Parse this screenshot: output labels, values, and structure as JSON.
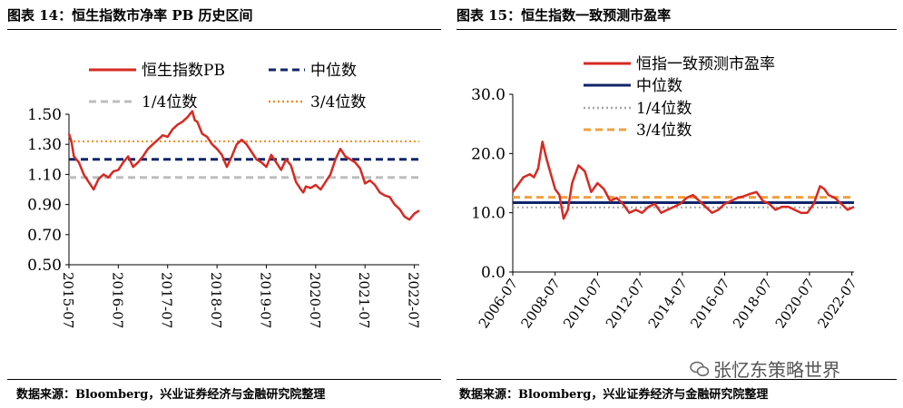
{
  "charts": [
    {
      "title": "图表 14：恒生指数市净率 PB 历史区间",
      "source": "数据来源：Bloomberg，兴业证券经济与金融研究院整理",
      "chart_data": {
        "type": "line",
        "x_tick_labels": [
          "2015-07",
          "2016-07",
          "2017-07",
          "2018-07",
          "2019-07",
          "2020-07",
          "2021-07",
          "2022-07"
        ],
        "ylim": [
          0.5,
          1.5
        ],
        "y_ticks": [
          0.5,
          0.7,
          0.9,
          1.1,
          1.3,
          1.5
        ],
        "y_tick_labels": [
          "0.50",
          "0.70",
          "0.90",
          "1.10",
          "1.30",
          "1.50"
        ],
        "grid": false,
        "legend_position": "top",
        "series": [
          {
            "name": "恒生指数PB",
            "style": "solid",
            "color": "#d62a22",
            "x": [
              2015.5,
              2015.55,
              2015.6,
              2015.7,
              2015.8,
              2015.9,
              2016.0,
              2016.1,
              2016.2,
              2016.3,
              2016.4,
              2016.5,
              2016.6,
              2016.7,
              2016.8,
              2016.9,
              2017.0,
              2017.1,
              2017.2,
              2017.3,
              2017.4,
              2017.5,
              2017.6,
              2017.7,
              2017.8,
              2017.9,
              2018.0,
              2018.05,
              2018.1,
              2018.2,
              2018.3,
              2018.4,
              2018.5,
              2018.6,
              2018.7,
              2018.8,
              2018.9,
              2019.0,
              2019.1,
              2019.2,
              2019.3,
              2019.4,
              2019.5,
              2019.6,
              2019.7,
              2019.8,
              2019.9,
              2020.0,
              2020.1,
              2020.2,
              2020.25,
              2020.3,
              2020.4,
              2020.5,
              2020.6,
              2020.7,
              2020.8,
              2020.9,
              2021.0,
              2021.1,
              2021.2,
              2021.3,
              2021.4,
              2021.5,
              2021.6,
              2021.7,
              2021.8,
              2021.9,
              2022.0,
              2022.1,
              2022.2,
              2022.3,
              2022.4,
              2022.5,
              2022.6
            ],
            "values": [
              1.37,
              1.32,
              1.22,
              1.18,
              1.1,
              1.05,
              1.0,
              1.07,
              1.1,
              1.08,
              1.12,
              1.13,
              1.18,
              1.22,
              1.15,
              1.18,
              1.22,
              1.27,
              1.3,
              1.33,
              1.36,
              1.35,
              1.4,
              1.43,
              1.45,
              1.48,
              1.52,
              1.46,
              1.45,
              1.37,
              1.35,
              1.3,
              1.27,
              1.23,
              1.15,
              1.22,
              1.3,
              1.33,
              1.3,
              1.25,
              1.2,
              1.18,
              1.15,
              1.23,
              1.18,
              1.13,
              1.2,
              1.16,
              1.05,
              1.0,
              0.98,
              1.02,
              1.01,
              1.03,
              1.0,
              1.05,
              1.1,
              1.2,
              1.27,
              1.22,
              1.2,
              1.18,
              1.14,
              1.04,
              1.06,
              1.03,
              0.98,
              0.96,
              0.95,
              0.9,
              0.87,
              0.82,
              0.8,
              0.84,
              0.86
            ]
          },
          {
            "name": "中位数",
            "style": "dashed",
            "color": "#10266b",
            "value": 1.2
          },
          {
            "name": "1/4位数",
            "style": "dashed",
            "color": "#bdbdbd",
            "value": 1.08
          },
          {
            "name": "3/4位数",
            "style": "dotted",
            "color": "#f28c1e",
            "value": 1.32
          }
        ]
      }
    },
    {
      "title": "图表 15：恒生指数一致预测市盈率",
      "source": "数据来源：Bloomberg，兴业证券经济与金融研究院整理",
      "chart_data": {
        "type": "line",
        "x_tick_labels": [
          "2006-07",
          "2008-07",
          "2010-07",
          "2012-07",
          "2014-07",
          "2016-07",
          "2018-07",
          "2020-07",
          "2022-07"
        ],
        "ylim": [
          0,
          30
        ],
        "y_ticks": [
          0,
          10,
          20,
          30
        ],
        "y_tick_labels": [
          "0.0",
          "10.0",
          "20.0",
          "30.0"
        ],
        "grid": false,
        "legend_position": "top",
        "series": [
          {
            "name": "恒指一致预测市盈率",
            "style": "solid",
            "color": "#d62a22",
            "x": [
              2006.5,
              2006.8,
              2007.0,
              2007.3,
              2007.5,
              2007.7,
              2007.9,
              2008.1,
              2008.3,
              2008.5,
              2008.7,
              2008.9,
              2009.1,
              2009.3,
              2009.6,
              2009.9,
              2010.2,
              2010.5,
              2010.8,
              2011.1,
              2011.4,
              2011.7,
              2012.0,
              2012.3,
              2012.6,
              2012.9,
              2013.2,
              2013.5,
              2013.8,
              2014.1,
              2014.4,
              2014.7,
              2015.0,
              2015.3,
              2015.6,
              2015.9,
              2016.2,
              2016.5,
              2016.8,
              2017.1,
              2017.4,
              2017.7,
              2018.0,
              2018.3,
              2018.6,
              2018.9,
              2019.2,
              2019.5,
              2019.8,
              2020.1,
              2020.4,
              2020.7,
              2021.0,
              2021.2,
              2021.4,
              2021.7,
              2022.0,
              2022.3,
              2022.6
            ],
            "values": [
              13.5,
              15.0,
              16.0,
              16.5,
              16.0,
              17.5,
              22.0,
              19.0,
              16.5,
              14.0,
              13.0,
              9.0,
              10.5,
              15.0,
              18.0,
              17.0,
              13.5,
              15.0,
              14.0,
              12.0,
              12.5,
              11.5,
              10.0,
              10.5,
              10.0,
              11.0,
              11.5,
              10.0,
              10.5,
              11.0,
              11.5,
              12.5,
              13.0,
              12.0,
              11.0,
              10.0,
              10.5,
              11.5,
              12.0,
              12.5,
              12.8,
              13.2,
              13.5,
              12.0,
              11.5,
              10.5,
              11.0,
              11.0,
              10.5,
              10.0,
              10.0,
              11.5,
              14.5,
              14.0,
              13.0,
              12.5,
              11.5,
              10.5,
              11.0
            ]
          },
          {
            "name": "中位数",
            "style": "solid",
            "color": "#10266b",
            "value": 11.7
          },
          {
            "name": "1/4位数",
            "style": "dotted",
            "color": "#a6a6a6",
            "value": 10.9
          },
          {
            "name": "3/4位数",
            "style": "dashed",
            "color": "#f0a040",
            "value": 12.6
          }
        ]
      }
    }
  ],
  "watermark": "张忆东策略世界"
}
